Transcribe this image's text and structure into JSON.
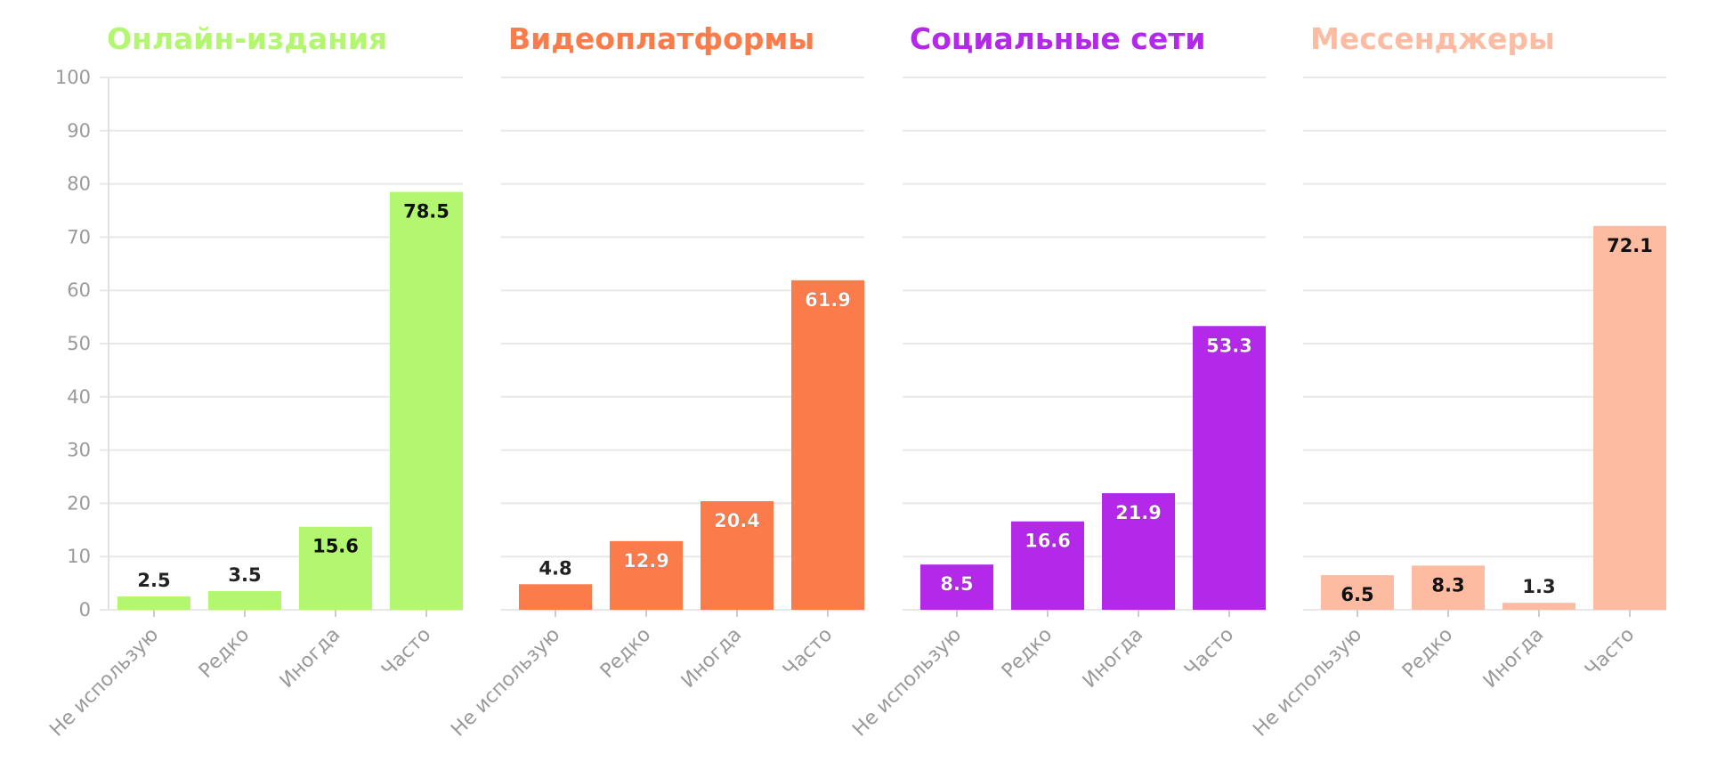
{
  "chart_data": {
    "type": "bar",
    "ylim": [
      0,
      100
    ],
    "yticks": [
      0,
      10,
      20,
      30,
      40,
      50,
      60,
      70,
      80,
      90,
      100
    ],
    "grid": true,
    "categories": [
      "Не использую",
      "Редко",
      "Иногда",
      "Часто"
    ],
    "panels": [
      {
        "title": "Онлайн-издания",
        "color": "#b2f76f",
        "values": [
          2.5,
          3.5,
          15.6,
          78.5
        ]
      },
      {
        "title": "Видеоплатформы",
        "color": "#fb7b4a",
        "values": [
          4.8,
          12.9,
          20.4,
          61.9
        ]
      },
      {
        "title": "Социальные сети",
        "color": "#b428ea",
        "values": [
          8.5,
          16.6,
          21.9,
          53.3
        ]
      },
      {
        "title": "Мессенджеры",
        "color": "#fdbba1",
        "values": [
          6.5,
          8.3,
          1.3,
          72.1
        ]
      }
    ]
  }
}
